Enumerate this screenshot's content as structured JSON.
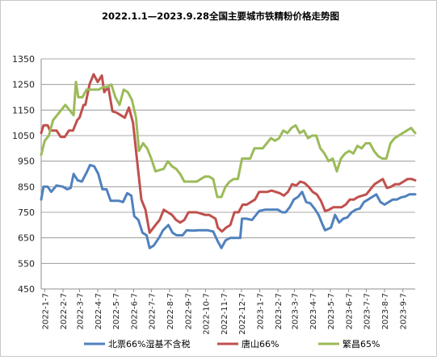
{
  "chart_data": {
    "type": "line",
    "title": "2022.1.1—2023.9.28全国主要城市铁精粉价格走势图",
    "xlabel": "",
    "ylabel": "",
    "ylim": [
      450,
      1350
    ],
    "yticks": [
      450,
      550,
      650,
      750,
      850,
      950,
      1050,
      1150,
      1250,
      1350
    ],
    "grid": "horizontal",
    "legend_position": "bottom",
    "x_tick_labels": [
      "2022-1-7",
      "2022-2-7",
      "2022-3-7",
      "2022-4-7",
      "2022-5-7",
      "2022-6-7",
      "2022-7-7",
      "2022-8-7",
      "2022-9-7",
      "2022-10-7",
      "2022-11-7",
      "2022-12-7",
      "2023-1-7",
      "2023-2-7",
      "2023-3-7",
      "2023-4-7",
      "2023-5-7",
      "2023-6-7",
      "2023-7-7",
      "2023-8-7",
      "2023-9-7"
    ],
    "x_range": [
      "2022-01-01",
      "2023-09-28"
    ],
    "series": [
      {
        "name": "北票66%湿基不含税",
        "color": "#4f81bd",
        "points": [
          [
            "2022-01-01",
            800
          ],
          [
            "2022-01-05",
            850
          ],
          [
            "2022-01-12",
            850
          ],
          [
            "2022-01-18",
            830
          ],
          [
            "2022-01-27",
            855
          ],
          [
            "2022-02-07",
            850
          ],
          [
            "2022-02-14",
            840
          ],
          [
            "2022-02-20",
            845
          ],
          [
            "2022-02-25",
            900
          ],
          [
            "2022-03-04",
            875
          ],
          [
            "2022-03-11",
            870
          ],
          [
            "2022-03-20",
            910
          ],
          [
            "2022-03-25",
            935
          ],
          [
            "2022-04-01",
            930
          ],
          [
            "2022-04-08",
            900
          ],
          [
            "2022-04-15",
            840
          ],
          [
            "2022-04-22",
            840
          ],
          [
            "2022-04-29",
            795
          ],
          [
            "2022-05-13",
            795
          ],
          [
            "2022-05-20",
            790
          ],
          [
            "2022-05-27",
            825
          ],
          [
            "2022-06-03",
            815
          ],
          [
            "2022-06-08",
            735
          ],
          [
            "2022-06-15",
            720
          ],
          [
            "2022-06-22",
            670
          ],
          [
            "2022-06-29",
            660
          ],
          [
            "2022-07-04",
            610
          ],
          [
            "2022-07-11",
            620
          ],
          [
            "2022-07-20",
            650
          ],
          [
            "2022-07-27",
            680
          ],
          [
            "2022-08-05",
            700
          ],
          [
            "2022-08-12",
            670
          ],
          [
            "2022-08-19",
            660
          ],
          [
            "2022-08-29",
            660
          ],
          [
            "2022-09-05",
            680
          ],
          [
            "2022-09-15",
            678
          ],
          [
            "2022-09-25",
            680
          ],
          [
            "2022-10-10",
            680
          ],
          [
            "2022-10-20",
            675
          ],
          [
            "2022-10-27",
            640
          ],
          [
            "2022-11-03",
            610
          ],
          [
            "2022-11-10",
            640
          ],
          [
            "2022-11-18",
            650
          ],
          [
            "2022-11-28",
            650
          ],
          [
            "2022-12-05",
            650
          ],
          [
            "2022-12-08",
            725
          ],
          [
            "2022-12-15",
            725
          ],
          [
            "2022-12-25",
            720
          ],
          [
            "2023-01-06",
            755
          ],
          [
            "2023-01-16",
            760
          ],
          [
            "2023-01-26",
            760
          ],
          [
            "2023-02-07",
            760
          ],
          [
            "2023-02-14",
            750
          ],
          [
            "2023-02-20",
            750
          ],
          [
            "2023-02-27",
            770
          ],
          [
            "2023-03-06",
            800
          ],
          [
            "2023-03-13",
            810
          ],
          [
            "2023-03-20",
            830
          ],
          [
            "2023-03-27",
            790
          ],
          [
            "2023-04-03",
            785
          ],
          [
            "2023-04-10",
            765
          ],
          [
            "2023-04-17",
            740
          ],
          [
            "2023-04-24",
            700
          ],
          [
            "2023-04-28",
            680
          ],
          [
            "2023-05-08",
            690
          ],
          [
            "2023-05-15",
            740
          ],
          [
            "2023-05-22",
            710
          ],
          [
            "2023-05-29",
            725
          ],
          [
            "2023-06-05",
            730
          ],
          [
            "2023-06-12",
            750
          ],
          [
            "2023-06-19",
            760
          ],
          [
            "2023-06-26",
            765
          ],
          [
            "2023-07-03",
            790
          ],
          [
            "2023-07-10",
            800
          ],
          [
            "2023-07-17",
            810
          ],
          [
            "2023-07-24",
            820
          ],
          [
            "2023-07-31",
            790
          ],
          [
            "2023-08-07",
            780
          ],
          [
            "2023-08-14",
            790
          ],
          [
            "2023-08-21",
            800
          ],
          [
            "2023-08-28",
            800
          ],
          [
            "2023-09-04",
            808
          ],
          [
            "2023-09-11",
            812
          ],
          [
            "2023-09-18",
            820
          ],
          [
            "2023-09-28",
            820
          ]
        ]
      },
      {
        "name": "唐山66%",
        "color": "#c0504d",
        "points": [
          [
            "2022-01-01",
            1060
          ],
          [
            "2022-01-05",
            1090
          ],
          [
            "2022-01-12",
            1090
          ],
          [
            "2022-01-16",
            1070
          ],
          [
            "2022-01-27",
            1070
          ],
          [
            "2022-02-03",
            1045
          ],
          [
            "2022-02-10",
            1045
          ],
          [
            "2022-02-17",
            1070
          ],
          [
            "2022-02-24",
            1070
          ],
          [
            "2022-03-03",
            1110
          ],
          [
            "2022-03-07",
            1120
          ],
          [
            "2022-03-14",
            1170
          ],
          [
            "2022-03-17",
            1170
          ],
          [
            "2022-03-24",
            1250
          ],
          [
            "2022-03-31",
            1290
          ],
          [
            "2022-04-07",
            1260
          ],
          [
            "2022-04-14",
            1285
          ],
          [
            "2022-04-18",
            1220
          ],
          [
            "2022-04-25",
            1240
          ],
          [
            "2022-05-02",
            1145
          ],
          [
            "2022-05-09",
            1140
          ],
          [
            "2022-05-16",
            1130
          ],
          [
            "2022-05-23",
            1120
          ],
          [
            "2022-05-30",
            1160
          ],
          [
            "2022-06-06",
            1100
          ],
          [
            "2022-06-13",
            950
          ],
          [
            "2022-06-20",
            800
          ],
          [
            "2022-06-27",
            760
          ],
          [
            "2022-07-04",
            670
          ],
          [
            "2022-07-14",
            700
          ],
          [
            "2022-07-21",
            720
          ],
          [
            "2022-07-28",
            760
          ],
          [
            "2022-08-04",
            750
          ],
          [
            "2022-08-11",
            740
          ],
          [
            "2022-08-18",
            720
          ],
          [
            "2022-08-25",
            710
          ],
          [
            "2022-09-01",
            720
          ],
          [
            "2022-09-08",
            750
          ],
          [
            "2022-09-15",
            750
          ],
          [
            "2022-09-22",
            750
          ],
          [
            "2022-09-29",
            745
          ],
          [
            "2022-10-06",
            740
          ],
          [
            "2022-10-13",
            740
          ],
          [
            "2022-10-24",
            725
          ],
          [
            "2022-10-28",
            690
          ],
          [
            "2022-11-04",
            675
          ],
          [
            "2022-11-11",
            690
          ],
          [
            "2022-11-18",
            700
          ],
          [
            "2022-11-25",
            750
          ],
          [
            "2022-12-02",
            750
          ],
          [
            "2022-12-09",
            780
          ],
          [
            "2022-12-16",
            780
          ],
          [
            "2022-12-23",
            790
          ],
          [
            "2022-12-30",
            800
          ],
          [
            "2023-01-06",
            830
          ],
          [
            "2023-01-13",
            830
          ],
          [
            "2023-01-20",
            830
          ],
          [
            "2023-01-27",
            835
          ],
          [
            "2023-02-03",
            830
          ],
          [
            "2023-02-10",
            825
          ],
          [
            "2023-02-17",
            815
          ],
          [
            "2023-02-24",
            830
          ],
          [
            "2023-03-03",
            860
          ],
          [
            "2023-03-10",
            855
          ],
          [
            "2023-03-17",
            870
          ],
          [
            "2023-03-24",
            865
          ],
          [
            "2023-03-31",
            850
          ],
          [
            "2023-04-07",
            830
          ],
          [
            "2023-04-14",
            820
          ],
          [
            "2023-04-21",
            795
          ],
          [
            "2023-04-28",
            755
          ],
          [
            "2023-05-05",
            760
          ],
          [
            "2023-05-12",
            770
          ],
          [
            "2023-05-19",
            770
          ],
          [
            "2023-05-26",
            770
          ],
          [
            "2023-06-02",
            780
          ],
          [
            "2023-06-09",
            800
          ],
          [
            "2023-06-16",
            800
          ],
          [
            "2023-06-23",
            810
          ],
          [
            "2023-06-30",
            815
          ],
          [
            "2023-07-07",
            820
          ],
          [
            "2023-07-14",
            840
          ],
          [
            "2023-07-21",
            860
          ],
          [
            "2023-07-28",
            870
          ],
          [
            "2023-08-04",
            880
          ],
          [
            "2023-08-11",
            845
          ],
          [
            "2023-08-18",
            850
          ],
          [
            "2023-08-25",
            860
          ],
          [
            "2023-09-01",
            860
          ],
          [
            "2023-09-08",
            870
          ],
          [
            "2023-09-15",
            880
          ],
          [
            "2023-09-22",
            880
          ],
          [
            "2023-09-28",
            875
          ]
        ]
      },
      {
        "name": "繁昌65%",
        "color": "#9bbb59",
        "points": [
          [
            "2022-01-01",
            975
          ],
          [
            "2022-01-07",
            1030
          ],
          [
            "2022-01-14",
            1050
          ],
          [
            "2022-01-21",
            1110
          ],
          [
            "2022-01-28",
            1130
          ],
          [
            "2022-02-04",
            1150
          ],
          [
            "2022-02-11",
            1170
          ],
          [
            "2022-02-18",
            1150
          ],
          [
            "2022-02-25",
            1130
          ],
          [
            "2022-03-01",
            1260
          ],
          [
            "2022-03-05",
            1200
          ],
          [
            "2022-03-12",
            1200
          ],
          [
            "2022-03-19",
            1230
          ],
          [
            "2022-03-26",
            1230
          ],
          [
            "2022-04-02",
            1230
          ],
          [
            "2022-04-09",
            1230
          ],
          [
            "2022-04-16",
            1240
          ],
          [
            "2022-04-23",
            1240
          ],
          [
            "2022-04-30",
            1250
          ],
          [
            "2022-05-07",
            1200
          ],
          [
            "2022-05-14",
            1170
          ],
          [
            "2022-05-21",
            1230
          ],
          [
            "2022-05-28",
            1220
          ],
          [
            "2022-06-04",
            1190
          ],
          [
            "2022-06-11",
            1120
          ],
          [
            "2022-06-16",
            990
          ],
          [
            "2022-06-23",
            1020
          ],
          [
            "2022-06-30",
            1000
          ],
          [
            "2022-07-07",
            960
          ],
          [
            "2022-07-14",
            910
          ],
          [
            "2022-07-21",
            915
          ],
          [
            "2022-07-28",
            920
          ],
          [
            "2022-08-04",
            950
          ],
          [
            "2022-08-11",
            930
          ],
          [
            "2022-08-18",
            920
          ],
          [
            "2022-08-25",
            900
          ],
          [
            "2022-09-01",
            870
          ],
          [
            "2022-09-08",
            870
          ],
          [
            "2022-09-15",
            870
          ],
          [
            "2022-09-22",
            870
          ],
          [
            "2022-09-29",
            880
          ],
          [
            "2022-10-06",
            890
          ],
          [
            "2022-10-13",
            890
          ],
          [
            "2022-10-20",
            880
          ],
          [
            "2022-10-27",
            810
          ],
          [
            "2022-11-03",
            810
          ],
          [
            "2022-11-10",
            850
          ],
          [
            "2022-11-17",
            870
          ],
          [
            "2022-11-24",
            880
          ],
          [
            "2022-12-01",
            880
          ],
          [
            "2022-12-08",
            960
          ],
          [
            "2022-12-15",
            960
          ],
          [
            "2022-12-22",
            960
          ],
          [
            "2022-12-29",
            1000
          ],
          [
            "2023-01-05",
            1000
          ],
          [
            "2023-01-12",
            1000
          ],
          [
            "2023-01-19",
            1020
          ],
          [
            "2023-01-26",
            1040
          ],
          [
            "2023-02-02",
            1030
          ],
          [
            "2023-02-09",
            1040
          ],
          [
            "2023-02-16",
            1070
          ],
          [
            "2023-02-23",
            1060
          ],
          [
            "2023-03-02",
            1080
          ],
          [
            "2023-03-09",
            1090
          ],
          [
            "2023-03-16",
            1060
          ],
          [
            "2023-03-23",
            1070
          ],
          [
            "2023-03-30",
            1040
          ],
          [
            "2023-04-06",
            1050
          ],
          [
            "2023-04-13",
            1050
          ],
          [
            "2023-04-20",
            1000
          ],
          [
            "2023-04-27",
            980
          ],
          [
            "2023-05-04",
            950
          ],
          [
            "2023-05-11",
            960
          ],
          [
            "2023-05-18",
            910
          ],
          [
            "2023-05-25",
            960
          ],
          [
            "2023-06-01",
            980
          ],
          [
            "2023-06-08",
            990
          ],
          [
            "2023-06-15",
            980
          ],
          [
            "2023-06-22",
            1010
          ],
          [
            "2023-06-29",
            1000
          ],
          [
            "2023-07-06",
            1020
          ],
          [
            "2023-07-13",
            1020
          ],
          [
            "2023-07-20",
            990
          ],
          [
            "2023-07-27",
            970
          ],
          [
            "2023-08-03",
            960
          ],
          [
            "2023-08-10",
            960
          ],
          [
            "2023-08-17",
            1020
          ],
          [
            "2023-08-24",
            1040
          ],
          [
            "2023-08-31",
            1050
          ],
          [
            "2023-09-07",
            1060
          ],
          [
            "2023-09-14",
            1070
          ],
          [
            "2023-09-21",
            1080
          ],
          [
            "2023-09-28",
            1060
          ]
        ]
      }
    ]
  }
}
